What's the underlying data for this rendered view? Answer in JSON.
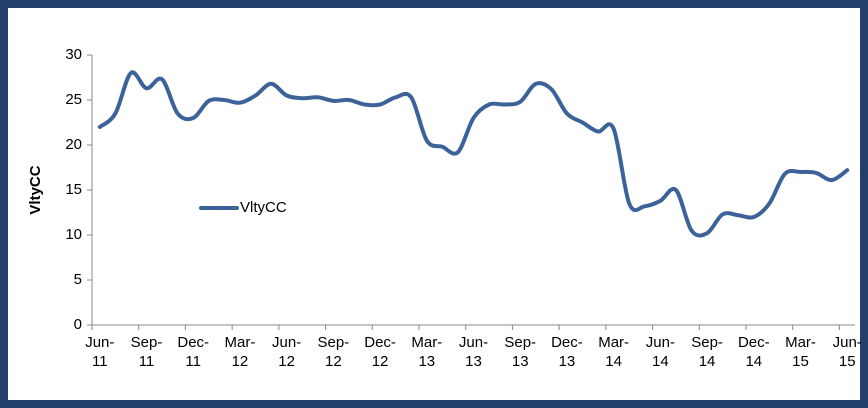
{
  "chart_data": {
    "type": "line",
    "y_axis_label": "VltyCC",
    "categories": [
      "Jun-11",
      null,
      null,
      "Sep-11",
      null,
      null,
      "Dec-11",
      null,
      null,
      "Mar-12",
      null,
      null,
      "Jun-12",
      null,
      null,
      "Sep-12",
      null,
      null,
      "Dec-12",
      null,
      null,
      "Mar-13",
      null,
      null,
      "Jun-13",
      null,
      null,
      "Sep-13",
      null,
      null,
      "Dec-13",
      null,
      null,
      "Mar-14",
      null,
      null,
      "Jun-14",
      null,
      null,
      "Sep-14",
      null,
      null,
      "Dec-14",
      null,
      null,
      "Mar-15",
      null,
      null,
      "Jun-15"
    ],
    "series": [
      {
        "name": "VltyCC",
        "color": "#3C6399",
        "values": [
          22,
          23.5,
          28,
          26.3,
          27.3,
          23.5,
          23,
          24.9,
          25,
          24.7,
          25.5,
          26.8,
          25.5,
          25.2,
          25.3,
          24.9,
          25,
          24.5,
          24.5,
          25.3,
          25.3,
          20.5,
          19.8,
          19.2,
          23,
          24.5,
          24.5,
          24.8,
          26.8,
          26.2,
          23.5,
          22.5,
          21.5,
          21.8,
          13.5,
          13.2,
          13.8,
          15,
          10.5,
          10.2,
          12.3,
          12.2,
          12,
          13.5,
          16.8,
          17,
          16.9,
          16.1,
          17.2
        ]
      }
    ],
    "ylim": [
      0,
      30
    ],
    "yticks": [
      0,
      5,
      10,
      15,
      20,
      25,
      30
    ],
    "grid": false,
    "smooth": true,
    "legend": "left"
  }
}
